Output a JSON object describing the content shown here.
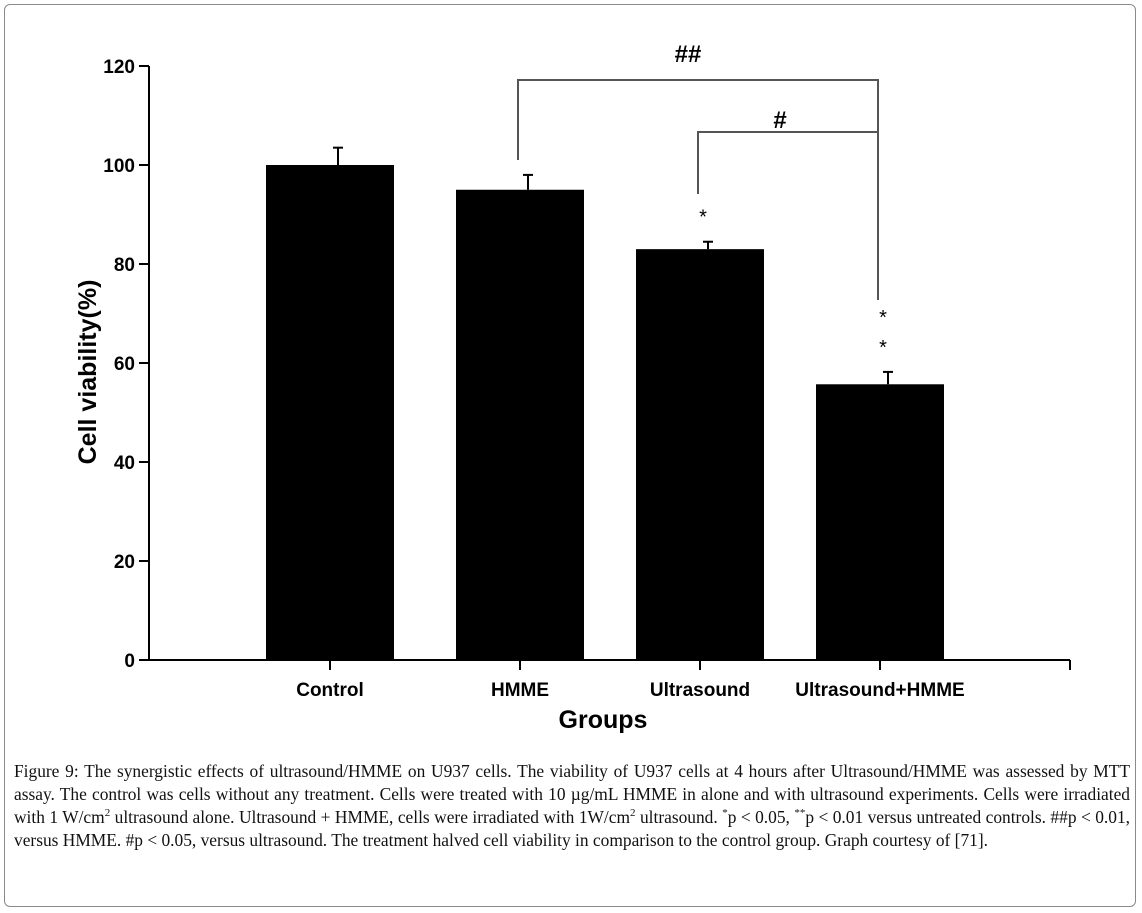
{
  "chart_data": {
    "type": "bar",
    "xlabel": "Groups",
    "ylabel": "Cell viability(%)",
    "categories": [
      "Control",
      "HMME",
      "Ultrasound",
      "Ultrasound+HMME"
    ],
    "series": [
      {
        "values": [
          100,
          95,
          83,
          55.7
        ],
        "error": [
          3.5,
          3,
          1.5,
          2.5
        ]
      }
    ],
    "ylim": [
      0,
      120
    ],
    "yticks": [
      "0",
      "20",
      "40",
      "60",
      "80",
      "100",
      "120"
    ],
    "bar_color": "#000000",
    "significance_marks": [
      {
        "category": "Ultrasound",
        "label": "*"
      },
      {
        "category": "Ultrasound+HMME",
        "label": "**"
      }
    ],
    "brackets": [
      {
        "from": "HMME",
        "to": "Ultrasound+HMME",
        "label": "##"
      },
      {
        "from": "Ultrasound",
        "to": "Ultrasound+HMME",
        "label": "#"
      }
    ],
    "grid": false,
    "legend": "none"
  },
  "caption": {
    "label": "Figure 9:",
    "part1": " The synergistic effects of ultrasound/HMME on U937 cells. The viability of U937 cells at 4 hours after Ultrasound/HMME was assessed by MTT assay. The control was cells without any treatment. Cells were treated with 10 µg/mL HMME in alone and with ultrasound experiments. Cells were irradiated with 1 W/cm",
    "sup1": "2",
    "part2": " ultrasound alone. Ultrasound + HMME, cells were irradiated with 1W/cm",
    "sup2": "2",
    "part3": " ultrasound. ",
    "sup3": "*",
    "part4": "p < 0.05, ",
    "sup4": "**",
    "part5": "p < 0.01 versus untreated controls. ##p < 0.01, versus HMME. #p < 0.05, versus ultrasound. The treatment halved cell viability in comparison to the control group. Graph courtesy of [71]."
  }
}
